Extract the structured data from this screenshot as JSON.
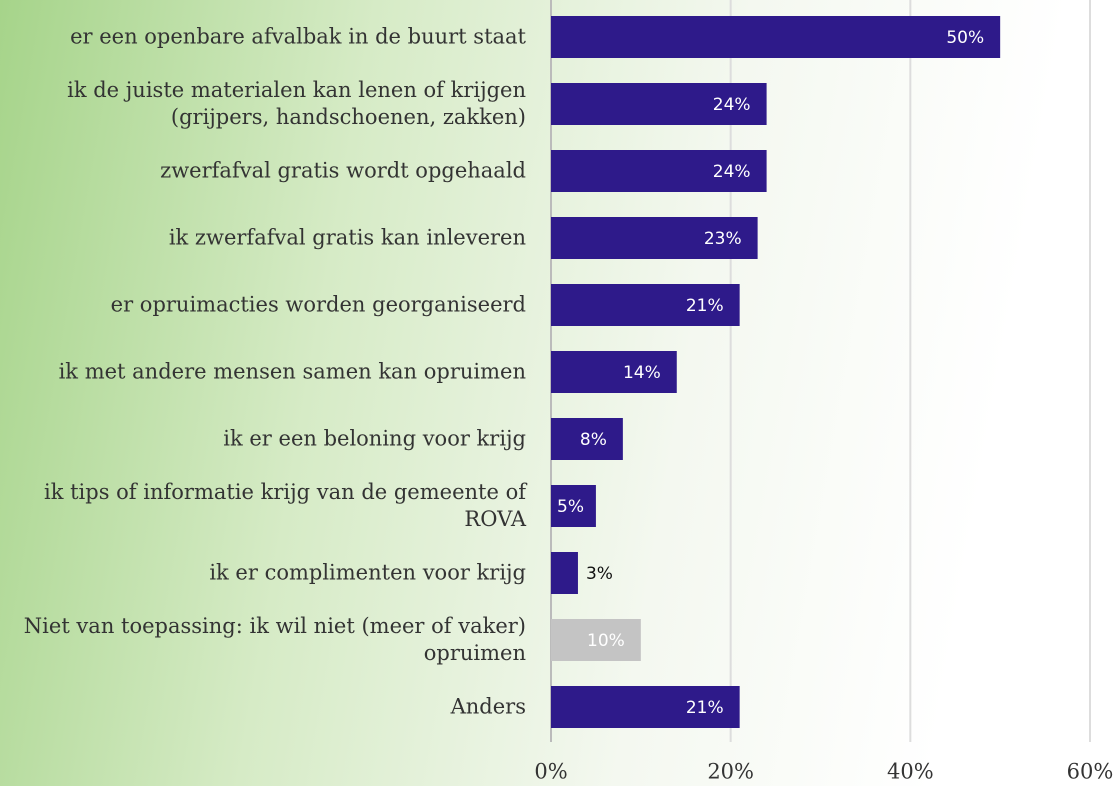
{
  "chart_data": {
    "type": "bar",
    "orientation": "horizontal",
    "categories": [
      "er een openbare afvalbak in de buurt staat",
      "ik de juiste materialen kan lenen of krijgen (grijpers, handschoenen, zakken)",
      "zwerfafval gratis wordt opgehaald",
      "ik zwerfafval gratis kan inleveren",
      "er opruimacties worden georganiseerd",
      "ik met andere mensen samen kan opruimen",
      "ik er een beloning voor krijg",
      "ik tips of informatie krijg van de gemeente of ROVA",
      "ik er complimenten voor krijg",
      "Niet van toepassing: ik wil niet (meer of vaker) opruimen",
      "Anders"
    ],
    "values": [
      50,
      24,
      24,
      23,
      21,
      14,
      8,
      5,
      3,
      10,
      21
    ],
    "value_labels": [
      "50%",
      "24%",
      "24%",
      "23%",
      "21%",
      "14%",
      "8%",
      "5%",
      "3%",
      "10%",
      "21%"
    ],
    "colors": [
      "#2e1a8a",
      "#2e1a8a",
      "#2e1a8a",
      "#2e1a8a",
      "#2e1a8a",
      "#2e1a8a",
      "#2e1a8a",
      "#2e1a8a",
      "#2e1a8a",
      "#c4c4c4",
      "#2e1a8a"
    ],
    "xlim": [
      0,
      60
    ],
    "xticks": [
      {
        "value": 0,
        "label": "0%"
      },
      {
        "value": 20,
        "label": "20%"
      },
      {
        "value": 40,
        "label": "40%"
      },
      {
        "value": 60,
        "label": "60%"
      }
    ],
    "grid": true
  }
}
